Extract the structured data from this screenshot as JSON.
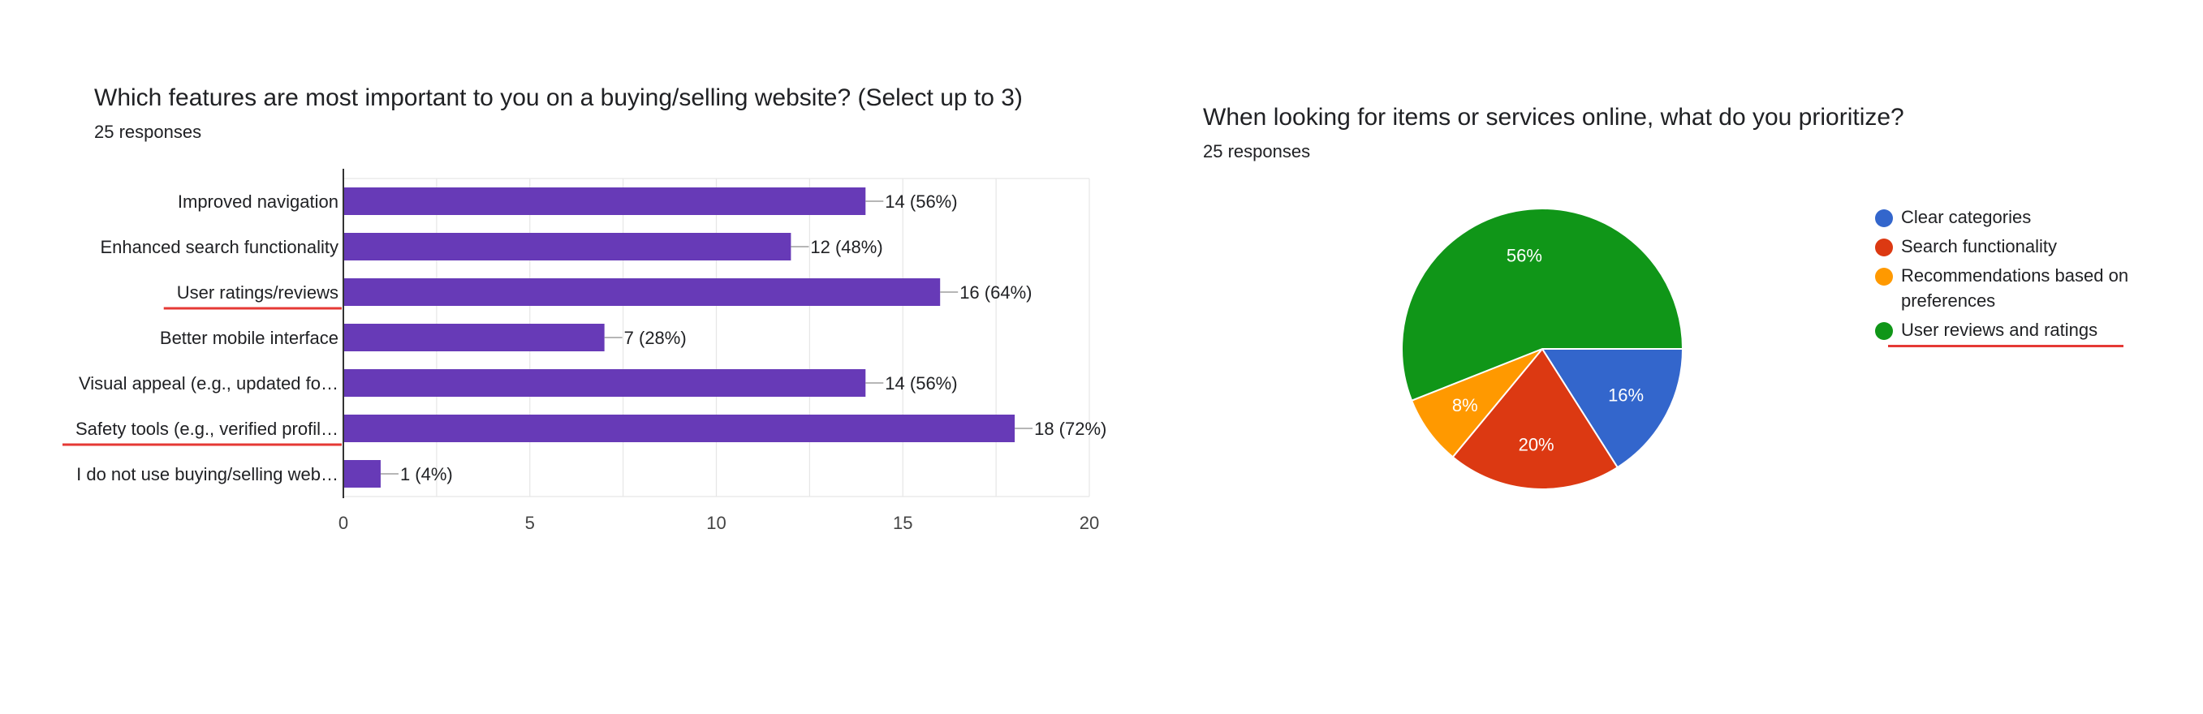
{
  "bar_question": {
    "title": "Which features are most important to you on a buying/selling website? (Select up to 3)",
    "responses": "25 responses"
  },
  "pie_question": {
    "title": "When looking for items or services online, what do you prioritize?",
    "responses": "25 responses"
  },
  "colors": {
    "bar": "#673ab7",
    "annotation_underline": "#e53935",
    "grid": "#e6e6e6",
    "axis": "#333333"
  },
  "chart_data": [
    {
      "type": "bar",
      "orientation": "horizontal",
      "categories": [
        "Improved navigation",
        "Enhanced search functionality",
        "User ratings/reviews",
        "Better mobile interface",
        "Visual appeal (e.g., updated fo…",
        "Safety tools (e.g., verified profil…",
        "I do not use buying/selling web…"
      ],
      "values": [
        14,
        12,
        16,
        7,
        14,
        18,
        1
      ],
      "data_labels": [
        "14 (56%)",
        "12 (48%)",
        "16 (64%)",
        "7 (28%)",
        "14 (56%)",
        "18 (72%)",
        "1 (4%)"
      ],
      "xlim": [
        0,
        20
      ],
      "x_ticks": [
        0,
        5,
        10,
        15,
        20
      ],
      "grid": true,
      "underlined_categories": [
        "User ratings/reviews",
        "Safety tools (e.g., verified profil…"
      ]
    },
    {
      "type": "pie",
      "labels": [
        "Clear categories",
        "Search functionality",
        "Recommendations based on preferences",
        "User reviews and ratings"
      ],
      "values": [
        16,
        20,
        8,
        56
      ],
      "slice_labels": [
        "16%",
        "20%",
        "8%",
        "56%"
      ],
      "colors": [
        "#3366cc",
        "#dc3912",
        "#ff9900",
        "#109618"
      ],
      "legend_position": "right",
      "underlined_legend_entries": [
        "User reviews and ratings"
      ]
    }
  ]
}
